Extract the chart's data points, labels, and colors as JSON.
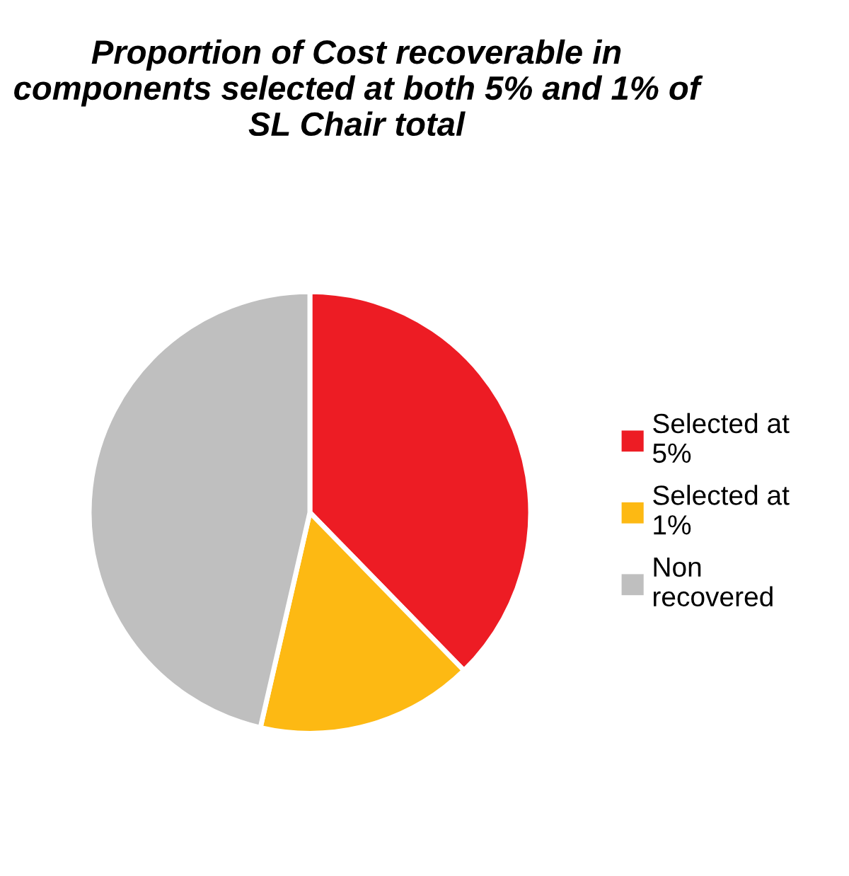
{
  "chart_data": {
    "type": "pie",
    "title": "Proportion of Cost recoverable in components selected at both 5% and 1% of SL Chair total",
    "categories": [
      "Selected at\n5%",
      "Selected at\n1%",
      "Non\nrecovered"
    ],
    "values": [
      37.7,
      15.9,
      46.4
    ],
    "colors": [
      "#ed1c24",
      "#fdb913",
      "#bfbfbf"
    ],
    "legend": "right"
  }
}
